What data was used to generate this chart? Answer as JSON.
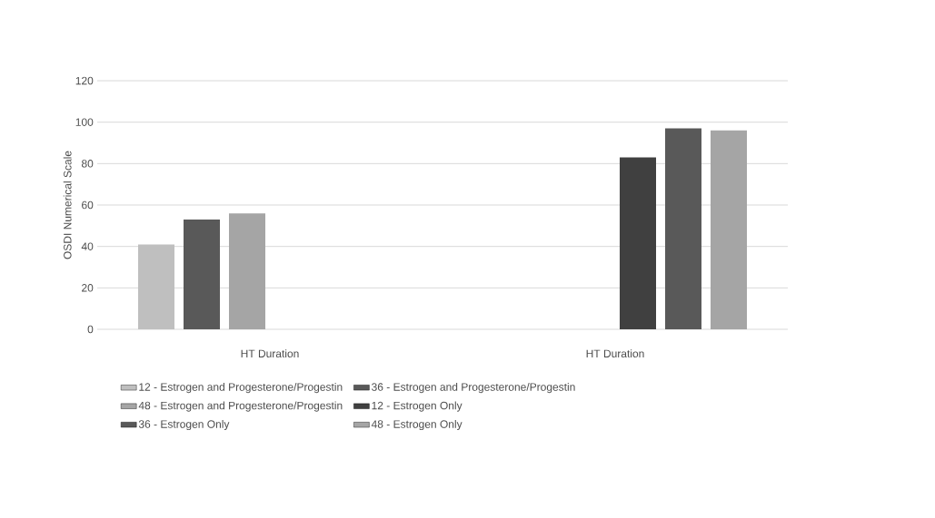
{
  "chart_data": {
    "type": "bar",
    "ylabel": "OSDI Numerical Scale",
    "categories": [
      "HT Duration",
      "HT Duration"
    ],
    "series": [
      {
        "name": "12 - Estrogen and Progesterone/Progestin",
        "color": "#bfbfbf",
        "values": [
          41,
          null
        ]
      },
      {
        "name": "36 - Estrogen and Progesterone/Progestin",
        "color": "#595959",
        "values": [
          53,
          null
        ]
      },
      {
        "name": "48 - Estrogen and Progesterone/Progestin",
        "color": "#a5a5a5",
        "values": [
          56,
          null
        ]
      },
      {
        "name": "12 - Estrogen Only",
        "color": "#404040",
        "values": [
          null,
          83
        ]
      },
      {
        "name": "36 - Estrogen Only",
        "color": "#595959",
        "values": [
          null,
          97
        ]
      },
      {
        "name": "48 - Estrogen Only",
        "color": "#a5a5a5",
        "values": [
          null,
          96
        ]
      }
    ],
    "ylim": [
      0,
      120
    ],
    "yticks": [
      0,
      20,
      40,
      60,
      80,
      100,
      120
    ],
    "grid": "y",
    "legend": "bottom"
  }
}
